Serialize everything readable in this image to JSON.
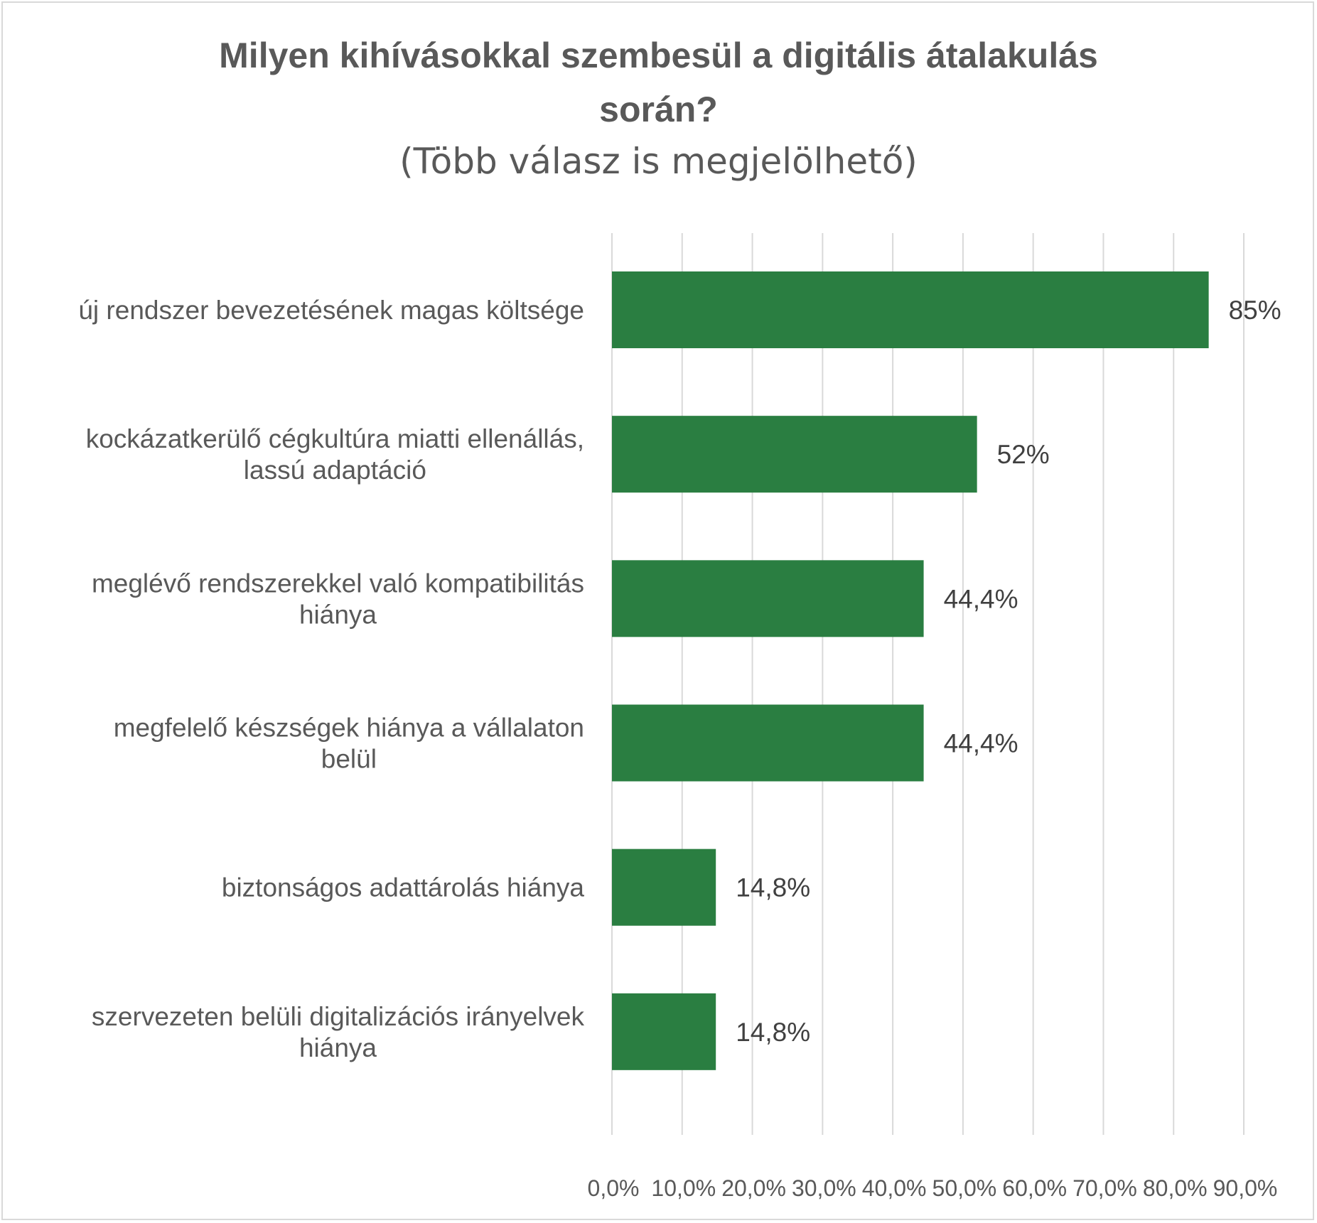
{
  "chart_data": {
    "type": "bar",
    "orientation": "horizontal",
    "title": "Milyen kihívásokkal szembesül a digitális átalakulás\nsorán?",
    "subtitle": "(Több válasz is megjelölhető)",
    "categories": [
      [
        "új rendszer bevezetésének magas költsége"
      ],
      [
        "kockázatkerülő cégkultúra miatti ellenállás,",
        "lassú adaptáció"
      ],
      [
        "meglévő rendszerekkel való kompatibilitás",
        "hiánya"
      ],
      [
        "megfelelő készségek hiánya a vállalaton",
        "belül"
      ],
      [
        "biztonságos adattárolás hiánya"
      ],
      [
        "szervezeten belüli digitalizációs irányelvek",
        "hiánya"
      ]
    ],
    "values": [
      85,
      52,
      44.4,
      44.4,
      14.8,
      14.8
    ],
    "data_labels": [
      "85%",
      "52%",
      "44,4%",
      "44,4%",
      "14,8%",
      "14,8%"
    ],
    "xlim": [
      0,
      90
    ],
    "x_ticks": [
      "0,0%",
      "10,0%",
      "20,0%",
      "30,0%",
      "40,0%",
      "50,0%",
      "60,0%",
      "70,0%",
      "80,0%",
      "90,0%"
    ],
    "grid": true,
    "bar_color": "#2a7e41",
    "grid_color": "#d9d9d9"
  }
}
